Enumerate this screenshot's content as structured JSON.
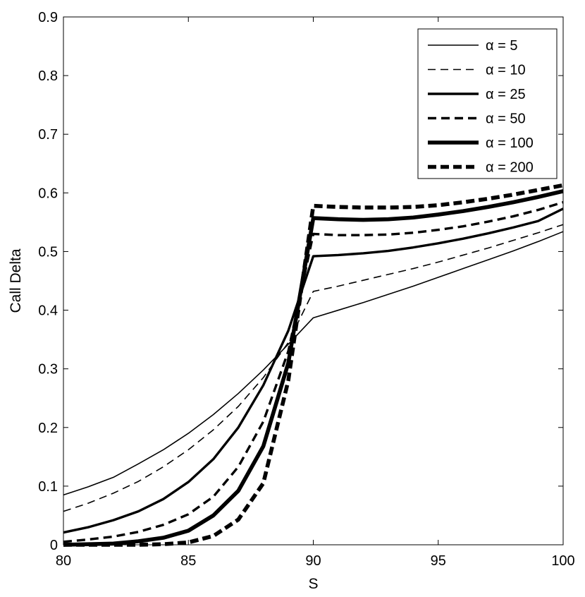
{
  "chart_data": {
    "type": "line",
    "title": "",
    "xlabel": "S",
    "ylabel": "Call Delta",
    "xlim": [
      80,
      100
    ],
    "ylim": [
      0,
      0.9
    ],
    "xticks": [
      "80",
      "85",
      "90",
      "95",
      "100"
    ],
    "yticks": [
      "0",
      "0.1",
      "0.2",
      "0.3",
      "0.4",
      "0.5",
      "0.6",
      "0.7",
      "0.8",
      "0.9"
    ],
    "grid": false,
    "legend_position": "top-right",
    "line_color": "#000000",
    "x": [
      80,
      81,
      82,
      83,
      84,
      85,
      86,
      87,
      88,
      89,
      90,
      91,
      92,
      93,
      94,
      95,
      96,
      97,
      98,
      99,
      100
    ],
    "series": [
      {
        "name": "α = 5",
        "style": "solid",
        "weight": 1,
        "values": [
          0.085,
          0.099,
          0.115,
          0.138,
          0.162,
          0.19,
          0.222,
          0.258,
          0.298,
          0.342,
          0.387,
          0.4,
          0.413,
          0.427,
          0.441,
          0.456,
          0.471,
          0.486,
          0.501,
          0.517,
          0.534
        ]
      },
      {
        "name": "α = 10",
        "style": "dashed",
        "weight": 1,
        "values": [
          0.057,
          0.071,
          0.088,
          0.108,
          0.133,
          0.162,
          0.196,
          0.236,
          0.285,
          0.345,
          0.432,
          0.441,
          0.451,
          0.461,
          0.471,
          0.482,
          0.494,
          0.506,
          0.519,
          0.532,
          0.546
        ]
      },
      {
        "name": "α = 25",
        "style": "solid",
        "weight": 2,
        "values": [
          0.021,
          0.03,
          0.042,
          0.057,
          0.078,
          0.107,
          0.146,
          0.2,
          0.272,
          0.365,
          0.492,
          0.494,
          0.497,
          0.501,
          0.507,
          0.514,
          0.522,
          0.531,
          0.541,
          0.552,
          0.573
        ]
      },
      {
        "name": "α = 50",
        "style": "dashed",
        "weight": 2,
        "values": [
          0.005,
          0.009,
          0.014,
          0.022,
          0.034,
          0.052,
          0.082,
          0.133,
          0.21,
          0.33,
          0.53,
          0.528,
          0.528,
          0.529,
          0.532,
          0.537,
          0.543,
          0.551,
          0.56,
          0.571,
          0.584
        ]
      },
      {
        "name": "α = 100",
        "style": "solid",
        "weight": 3,
        "values": [
          0.0,
          0.001,
          0.002,
          0.006,
          0.012,
          0.024,
          0.05,
          0.092,
          0.168,
          0.31,
          0.557,
          0.555,
          0.554,
          0.555,
          0.558,
          0.563,
          0.569,
          0.576,
          0.584,
          0.593,
          0.603
        ]
      },
      {
        "name": "α = 200",
        "style": "dashed",
        "weight": 3,
        "values": [
          0.0,
          0.0,
          0.0,
          0.0,
          0.001,
          0.004,
          0.015,
          0.043,
          0.105,
          0.28,
          0.578,
          0.576,
          0.575,
          0.575,
          0.576,
          0.579,
          0.584,
          0.59,
          0.597,
          0.605,
          0.613
        ]
      }
    ]
  }
}
